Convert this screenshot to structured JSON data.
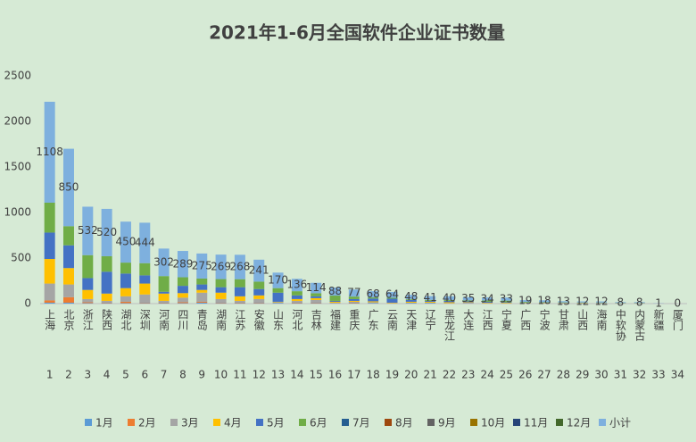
{
  "chart_data": {
    "type": "stacked_bar",
    "title": "2021年1-6月全国软件企业证书数量",
    "categories": [
      "上海",
      "北京",
      "浙江",
      "陕西",
      "湖北",
      "深圳",
      "河南",
      "四川",
      "青岛",
      "湖南",
      "江苏",
      "安徽",
      "山东",
      "河北",
      "吉林",
      "福建",
      "重庆",
      "广东",
      "云南",
      "天津",
      "辽宁",
      "黑龙江",
      "大连",
      "江西",
      "宁夏",
      "广西",
      "宁波",
      "甘肃",
      "山西",
      "海南",
      "中软协",
      "内蒙古",
      "新疆",
      "厦门"
    ],
    "x_numbers": [
      1,
      2,
      3,
      4,
      5,
      6,
      7,
      8,
      9,
      10,
      11,
      12,
      13,
      14,
      15,
      16,
      17,
      18,
      19,
      20,
      21,
      22,
      23,
      24,
      25,
      26,
      27,
      28,
      29,
      30,
      31,
      32,
      33,
      34
    ],
    "ylim": [
      0,
      2500
    ],
    "yticks": [
      0,
      500,
      1000,
      1500,
      2000,
      2500
    ],
    "series": [
      {
        "name": "1月",
        "color": "#5b9bd5",
        "values": [
          10,
          10,
          5,
          5,
          5,
          5,
          5,
          5,
          10,
          5,
          5,
          5,
          5,
          5,
          5,
          0,
          5,
          5,
          0,
          5,
          5,
          0,
          0,
          0,
          0,
          0,
          0,
          0,
          0,
          0,
          0,
          0,
          0,
          0
        ]
      },
      {
        "name": "2月",
        "color": "#ed7d31",
        "values": [
          25,
          60,
          10,
          5,
          15,
          5,
          5,
          10,
          10,
          5,
          5,
          5,
          0,
          5,
          5,
          0,
          5,
          0,
          0,
          0,
          0,
          0,
          0,
          0,
          0,
          0,
          0,
          0,
          0,
          0,
          0,
          0,
          0,
          0
        ]
      },
      {
        "name": "3月",
        "color": "#a5a5a5",
        "values": [
          185,
          140,
          35,
          20,
          60,
          90,
          20,
          50,
          100,
          40,
          20,
          40,
          10,
          20,
          30,
          10,
          10,
          10,
          5,
          5,
          5,
          5,
          10,
          5,
          5,
          2,
          3,
          2,
          2,
          2,
          1,
          1,
          0,
          0
        ]
      },
      {
        "name": "4月",
        "color": "#ffc000",
        "values": [
          270,
          180,
          100,
          80,
          90,
          120,
          80,
          50,
          30,
          70,
          50,
          40,
          5,
          20,
          20,
          10,
          10,
          10,
          5,
          10,
          10,
          10,
          5,
          5,
          5,
          5,
          5,
          3,
          3,
          2,
          2,
          2,
          0,
          0
        ]
      },
      {
        "name": "5月",
        "color": "#4472c4",
        "values": [
          290,
          250,
          130,
          240,
          160,
          90,
          20,
          80,
          60,
          60,
          100,
          70,
          100,
          40,
          20,
          10,
          20,
          30,
          44,
          20,
          10,
          15,
          10,
          10,
          5,
          5,
          5,
          4,
          3,
          4,
          2,
          2,
          1,
          0
        ]
      },
      {
        "name": "6月",
        "color": "#70ad47",
        "values": [
          328,
          210,
          252,
          170,
          120,
          134,
          172,
          94,
          65,
          89,
          88,
          81,
          50,
          46,
          34,
          58,
          27,
          13,
          10,
          8,
          11,
          10,
          10,
          14,
          18,
          7,
          5,
          4,
          4,
          4,
          3,
          3,
          0,
          0
        ]
      },
      {
        "name": "7月",
        "color": "#255e91",
        "values": [
          0,
          0,
          0,
          0,
          0,
          0,
          0,
          0,
          0,
          0,
          0,
          0,
          0,
          0,
          0,
          0,
          0,
          0,
          0,
          0,
          0,
          0,
          0,
          0,
          0,
          0,
          0,
          0,
          0,
          0,
          0,
          0,
          0,
          0
        ]
      },
      {
        "name": "8月",
        "color": "#9e480e",
        "values": [
          0,
          0,
          0,
          0,
          0,
          0,
          0,
          0,
          0,
          0,
          0,
          0,
          0,
          0,
          0,
          0,
          0,
          0,
          0,
          0,
          0,
          0,
          0,
          0,
          0,
          0,
          0,
          0,
          0,
          0,
          0,
          0,
          0,
          0
        ]
      },
      {
        "name": "9月",
        "color": "#636363",
        "values": [
          0,
          0,
          0,
          0,
          0,
          0,
          0,
          0,
          0,
          0,
          0,
          0,
          0,
          0,
          0,
          0,
          0,
          0,
          0,
          0,
          0,
          0,
          0,
          0,
          0,
          0,
          0,
          0,
          0,
          0,
          0,
          0,
          0,
          0
        ]
      },
      {
        "name": "10月",
        "color": "#997300",
        "values": [
          0,
          0,
          0,
          0,
          0,
          0,
          0,
          0,
          0,
          0,
          0,
          0,
          0,
          0,
          0,
          0,
          0,
          0,
          0,
          0,
          0,
          0,
          0,
          0,
          0,
          0,
          0,
          0,
          0,
          0,
          0,
          0,
          0,
          0
        ]
      },
      {
        "name": "11月",
        "color": "#264478",
        "values": [
          0,
          0,
          0,
          0,
          0,
          0,
          0,
          0,
          0,
          0,
          0,
          0,
          0,
          0,
          0,
          0,
          0,
          0,
          0,
          0,
          0,
          0,
          0,
          0,
          0,
          0,
          0,
          0,
          0,
          0,
          0,
          0,
          0,
          0
        ]
      },
      {
        "name": "12月",
        "color": "#43682b",
        "values": [
          0,
          0,
          0,
          0,
          0,
          0,
          0,
          0,
          0,
          0,
          0,
          0,
          0,
          0,
          0,
          0,
          0,
          0,
          0,
          0,
          0,
          0,
          0,
          0,
          0,
          0,
          0,
          0,
          0,
          0,
          0,
          0,
          0,
          0
        ]
      },
      {
        "name": "小计",
        "color": "#7eb0de",
        "labels": true,
        "values": [
          1108,
          850,
          532,
          520,
          450,
          444,
          302,
          289,
          275,
          269,
          268,
          241,
          170,
          136,
          114,
          88,
          77,
          68,
          64,
          48,
          41,
          40,
          35,
          34,
          33,
          19,
          18,
          13,
          12,
          12,
          8,
          8,
          1,
          0
        ]
      }
    ]
  }
}
